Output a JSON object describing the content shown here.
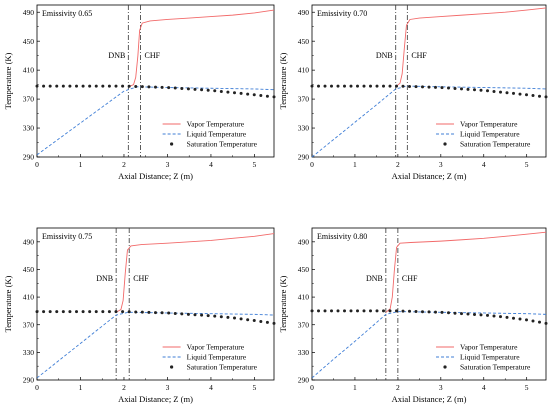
{
  "colors": {
    "vapor": "#f26a6a",
    "liquid": "#3f7ed6",
    "saturation": "#222222",
    "marker_lines": "#333333"
  },
  "chart_data": [
    {
      "type": "line",
      "annotation": "Emissivity 0.65",
      "xlabel": "Axial Distance; Z (m)",
      "ylabel": "Temperature (K)",
      "xlim": [
        0,
        5.45
      ],
      "ylim": [
        290,
        500
      ],
      "xticks": [
        "0",
        "1",
        "2",
        "3",
        "4",
        "5"
      ],
      "yticks": [
        "290",
        "330",
        "370",
        "410",
        "450",
        "490"
      ],
      "dnb_x": 2.1,
      "chf_x": 2.38,
      "dnb_label": "DNB",
      "chf_label": "CHF",
      "legend_position": "lower-right",
      "series": [
        {
          "name": "Vapor Temperature",
          "style": "solid",
          "color": "#f26a6a",
          "x": [
            2.1,
            2.22,
            2.27,
            2.32,
            2.36,
            2.42,
            2.6,
            3.0,
            3.5,
            4.0,
            4.5,
            5.0,
            5.45
          ],
          "y": [
            387,
            390,
            400,
            430,
            465,
            475,
            478,
            480,
            482,
            484,
            486,
            489,
            493
          ]
        },
        {
          "name": "Liquid Temperature",
          "style": "dashed",
          "color": "#3f7ed6",
          "x": [
            0,
            0.5,
            1.0,
            1.5,
            2.0,
            2.3,
            3.0,
            4.0,
            5.0,
            5.45
          ],
          "y": [
            293,
            315,
            337,
            359,
            381,
            387,
            386,
            385,
            384,
            383
          ]
        },
        {
          "name": "Saturation Temperature",
          "style": "dotted",
          "color": "#222222",
          "x": [
            0,
            0.5,
            1.0,
            1.5,
            2.0,
            2.5,
            3.0,
            3.5,
            4.0,
            4.5,
            5.0,
            5.45
          ],
          "y": [
            388,
            388,
            388,
            388,
            388,
            387,
            386,
            384,
            382,
            379,
            376,
            373
          ]
        }
      ]
    },
    {
      "type": "line",
      "annotation": "Emissivity 0.70",
      "xlabel": "Axial Distance; Z (m)",
      "ylabel": "Temperature (K)",
      "xlim": [
        0,
        5.45
      ],
      "ylim": [
        290,
        500
      ],
      "xticks": [
        "0",
        "1",
        "2",
        "3",
        "4",
        "5"
      ],
      "yticks": [
        "290",
        "330",
        "370",
        "410",
        "450",
        "490"
      ],
      "dnb_x": 1.95,
      "chf_x": 2.22,
      "dnb_label": "DNB",
      "chf_label": "CHF",
      "legend_position": "lower-right",
      "series": [
        {
          "name": "Vapor Temperature",
          "style": "solid",
          "color": "#f26a6a",
          "x": [
            1.95,
            2.05,
            2.1,
            2.15,
            2.2,
            2.28,
            2.5,
            3.0,
            3.5,
            4.0,
            4.5,
            5.0,
            5.45
          ],
          "y": [
            387,
            392,
            405,
            440,
            472,
            480,
            482,
            484,
            486,
            488,
            490,
            493,
            496
          ]
        },
        {
          "name": "Liquid Temperature",
          "style": "dashed",
          "color": "#3f7ed6",
          "x": [
            0,
            0.5,
            1.0,
            1.5,
            1.95,
            2.2,
            3.0,
            4.0,
            5.0,
            5.45
          ],
          "y": [
            290,
            314,
            338,
            362,
            384,
            388,
            387,
            386,
            385,
            384
          ]
        },
        {
          "name": "Saturation Temperature",
          "style": "dotted",
          "color": "#222222",
          "x": [
            0,
            0.5,
            1.0,
            1.5,
            2.0,
            2.5,
            3.0,
            3.5,
            4.0,
            4.5,
            5.0,
            5.45
          ],
          "y": [
            388,
            388,
            388,
            388,
            388,
            387,
            386,
            384,
            382,
            379,
            376,
            373
          ]
        }
      ]
    },
    {
      "type": "line",
      "annotation": "Emissivity 0.75",
      "xlabel": "Axial Distance; Z (m)",
      "ylabel": "Temperature (K)",
      "xlim": [
        0,
        5.45
      ],
      "ylim": [
        290,
        510
      ],
      "xticks": [
        "0",
        "1",
        "2",
        "3",
        "4",
        "5"
      ],
      "yticks": [
        "290",
        "330",
        "370",
        "410",
        "450",
        "490"
      ],
      "dnb_x": 1.82,
      "chf_x": 2.12,
      "dnb_label": "DNB",
      "chf_label": "CHF",
      "legend_position": "lower-right",
      "series": [
        {
          "name": "Vapor Temperature",
          "style": "solid",
          "color": "#f26a6a",
          "x": [
            1.82,
            1.93,
            1.98,
            2.03,
            2.08,
            2.16,
            2.4,
            3.0,
            3.5,
            4.0,
            4.5,
            5.0,
            5.45
          ],
          "y": [
            388,
            392,
            405,
            445,
            478,
            484,
            486,
            488,
            490,
            492,
            495,
            498,
            502
          ]
        },
        {
          "name": "Liquid Temperature",
          "style": "dashed",
          "color": "#3f7ed6",
          "x": [
            0,
            0.5,
            1.0,
            1.5,
            1.82,
            2.1,
            3.0,
            4.0,
            5.0,
            5.45
          ],
          "y": [
            293,
            318,
            343,
            368,
            384,
            388,
            387,
            386,
            385,
            384
          ]
        },
        {
          "name": "Saturation Temperature",
          "style": "dotted",
          "color": "#222222",
          "x": [
            0,
            0.5,
            1.0,
            1.5,
            2.0,
            2.5,
            3.0,
            3.5,
            4.0,
            4.5,
            5.0,
            5.45
          ],
          "y": [
            389,
            389,
            389,
            389,
            389,
            388,
            387,
            385,
            383,
            380,
            376,
            372
          ]
        }
      ]
    },
    {
      "type": "line",
      "annotation": "Emissivity 0.80",
      "xlabel": "Axial Distance; Z (m)",
      "ylabel": "Temperature (K)",
      "xlim": [
        0,
        5.45
      ],
      "ylim": [
        290,
        510
      ],
      "xticks": [
        "0",
        "1",
        "2",
        "3",
        "4",
        "5"
      ],
      "yticks": [
        "290",
        "330",
        "370",
        "410",
        "450",
        "490"
      ],
      "dnb_x": 1.72,
      "chf_x": 2.0,
      "dnb_label": "DNB",
      "chf_label": "CHF",
      "legend_position": "lower-right",
      "series": [
        {
          "name": "Vapor Temperature",
          "style": "solid",
          "color": "#f26a6a",
          "x": [
            1.72,
            1.82,
            1.87,
            1.92,
            1.97,
            2.05,
            2.3,
            3.0,
            3.5,
            4.0,
            4.5,
            5.0,
            5.45
          ],
          "y": [
            388,
            393,
            410,
            450,
            482,
            488,
            489,
            491,
            493,
            495,
            498,
            501,
            504
          ]
        },
        {
          "name": "Liquid Temperature",
          "style": "dashed",
          "color": "#3f7ed6",
          "x": [
            0,
            0.5,
            1.0,
            1.5,
            1.72,
            2.0,
            3.0,
            4.0,
            5.0,
            5.45
          ],
          "y": [
            293,
            320,
            346,
            373,
            385,
            389,
            388,
            387,
            386,
            385
          ]
        },
        {
          "name": "Saturation Temperature",
          "style": "dotted",
          "color": "#222222",
          "x": [
            0,
            0.5,
            1.0,
            1.5,
            2.0,
            2.5,
            3.0,
            3.5,
            4.0,
            4.5,
            5.0,
            5.45
          ],
          "y": [
            390,
            390,
            390,
            390,
            390,
            389,
            388,
            386,
            384,
            381,
            377,
            372
          ]
        }
      ]
    }
  ]
}
